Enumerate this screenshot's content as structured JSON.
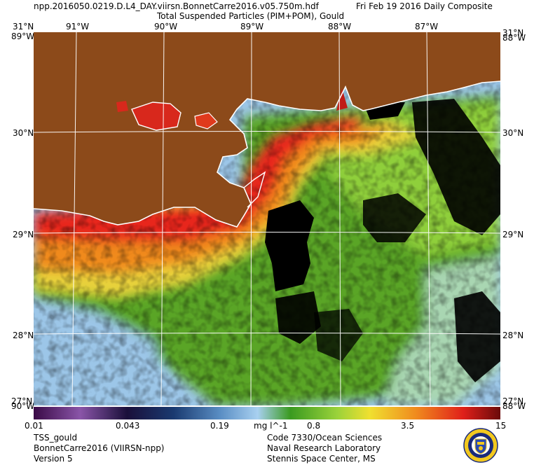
{
  "header": {
    "filename": "npp.2016050.0219.D.L4_DAY.viirsn.BonnetCarre2016.v05.750m.hdf",
    "date": "Fri Feb 19 2016 Daily Composite",
    "title": "Total Suspended Particles (PIM+POM), Gould"
  },
  "map": {
    "lon_labels": [
      "91°W",
      "90°W",
      "89°W",
      "88°W",
      "87°W"
    ],
    "lat_labels": [
      "30°N",
      "29°N",
      "28°N"
    ],
    "corner_labels": {
      "top_left_lat": "31°N",
      "top_left_lon": "89°W",
      "top_right_lat": "31°N",
      "top_right_lon": "88°W",
      "bottom_left_lat": "27°N",
      "bottom_left_lon": "90°W",
      "bottom_right_lat": "27°N",
      "bottom_right_lon": "88°W"
    },
    "colors": {
      "land": "#8c4a1a",
      "no_data": "#000000",
      "grid": "#ffffff",
      "coast": "#ffffff"
    }
  },
  "colorbar": {
    "ticks": [
      "0.01",
      "0.043",
      "0.19",
      "0.8",
      "3.5",
      "15"
    ],
    "units": "mg l^-1",
    "scale": "log",
    "range": [
      0.01,
      15
    ]
  },
  "footer": {
    "left": [
      "TSS_gould",
      "BonnetCarre2016 (VIIRSN-npp)",
      "Version 5"
    ],
    "right": [
      "Code 7330/Ocean Sciences",
      "Naval Research Laboratory",
      "Stennis Space Center, MS"
    ]
  }
}
